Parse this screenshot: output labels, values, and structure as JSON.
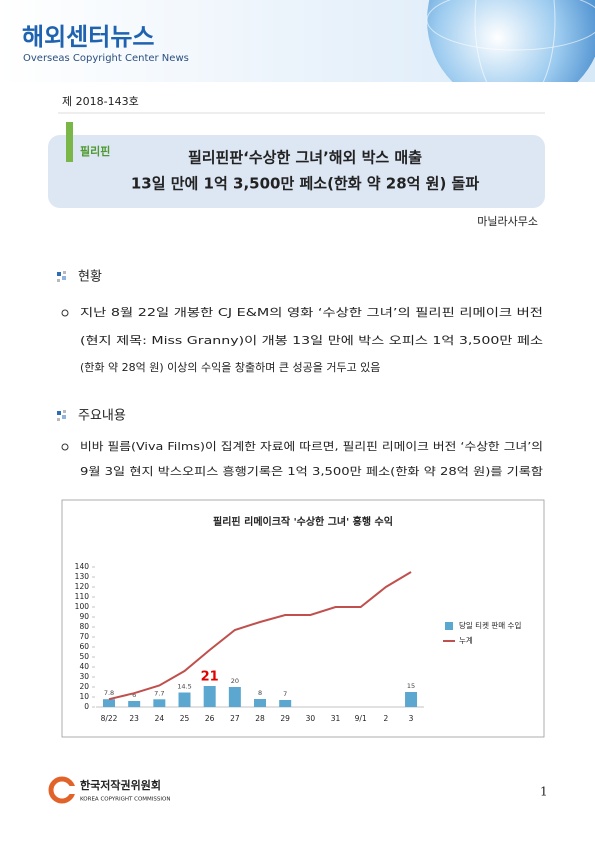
{
  "header": {
    "title": "해외센터뉴스",
    "subtitle": "Overseas Copyright Center News"
  },
  "issue": "제 2018-143호",
  "headline": {
    "tag": "필리핀",
    "lines": [
      "필리핀판‘수상한 그녀’해외 박스 매출",
      "13일 만에 1억 3,500만 페소(한화 약 28억 원) 돌파"
    ]
  },
  "office": "마닐라사무소",
  "sections": [
    {
      "heading": "현황",
      "lines": [
        "지난 8월 22일 개봉한 CJ E&M의 영화 ‘수상한 그녀’의 필리핀 리메이크 버전",
        "(현지 제목: Miss Granny)이 개봉 13일 만에 박스 오피스 1억 3,500만 페소",
        "(한화 약 28억 원) 이상의 수익을 창출하며 큰 성공을 거두고 있음"
      ]
    },
    {
      "heading": "주요내용",
      "lines": [
        "비바 필름(Viva Films)이 집계한 자료에 따르면, 필리핀 리메이크 버전 ‘수상한 그녀’의",
        "9월 3일 현지 박스오피스 흥행기록은 1억 3,500만 페소(한화 약 28억 원)를 기록함"
      ]
    }
  ],
  "chart_data": {
    "type": "bar_line",
    "title": "필리핀 리메이크작 '수상한 그녀' 흥행 수익",
    "categories": [
      "8/22",
      "23",
      "24",
      "25",
      "26",
      "27",
      "28",
      "29",
      "30",
      "31",
      "9/1",
      "2",
      "3"
    ],
    "series": [
      {
        "name": "당일 티켓 판매 수입",
        "type": "bar",
        "color": "#5ba7cf",
        "values": [
          7.8,
          6,
          7.7,
          14.5,
          21,
          20,
          8,
          7,
          null,
          null,
          null,
          null,
          15
        ]
      },
      {
        "name": "누계",
        "type": "line",
        "color": "#c0504d",
        "values": [
          7.8,
          13.8,
          21.5,
          36,
          57,
          77,
          85,
          92,
          92,
          100,
          100,
          120,
          135
        ]
      }
    ],
    "ylim": [
      0,
      140
    ],
    "yticks": [
      0,
      10,
      20,
      30,
      40,
      50,
      60,
      70,
      80,
      90,
      100,
      110,
      120,
      130,
      140
    ],
    "legend": "right"
  },
  "footer": {
    "org": "한국저작권위원회",
    "org_en": "KOREA COPYRIGHT COMMISSION",
    "page": "1"
  }
}
